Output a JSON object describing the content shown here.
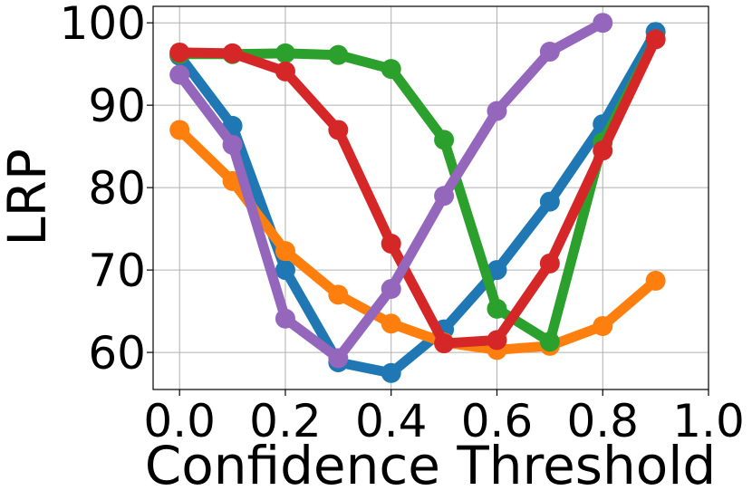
{
  "chart_data": {
    "type": "line",
    "title": "",
    "xlabel": "Confidence Threshold",
    "ylabel": "LRP",
    "xlim": [
      -0.05,
      1.0
    ],
    "ylim": [
      55.5,
      102
    ],
    "xticks": [
      0.0,
      0.2,
      0.4,
      0.6,
      0.8,
      1.0
    ],
    "xtick_labels": [
      "0.0",
      "0.2",
      "0.4",
      "0.6",
      "0.8",
      "1.0"
    ],
    "yticks": [
      60,
      70,
      80,
      90,
      100
    ],
    "ytick_labels": [
      "60",
      "70",
      "80",
      "90",
      "100"
    ],
    "grid": true,
    "legend": "none",
    "series": [
      {
        "color": "#1f77b4",
        "x": [
          0.0,
          0.1,
          0.2,
          0.3,
          0.4,
          0.5,
          0.6,
          0.7,
          0.8,
          0.9
        ],
        "y": [
          96.0,
          87.5,
          70.0,
          58.8,
          57.5,
          62.8,
          70.0,
          78.3,
          87.7,
          98.9
        ]
      },
      {
        "color": "#ff7f0e",
        "x": [
          0.0,
          0.1,
          0.2,
          0.3,
          0.4,
          0.5,
          0.6,
          0.7,
          0.8,
          0.9
        ],
        "y": [
          87.0,
          80.8,
          72.3,
          67.0,
          63.5,
          61.2,
          60.3,
          60.8,
          63.2,
          68.7
        ]
      },
      {
        "color": "#2ca02c",
        "x": [
          0.0,
          0.1,
          0.2,
          0.3,
          0.4,
          0.5,
          0.6,
          0.7,
          0.8,
          0.9
        ],
        "y": [
          96.2,
          96.2,
          96.3,
          96.1,
          94.4,
          85.8,
          65.3,
          61.3,
          85.5,
          98.0
        ]
      },
      {
        "color": "#d62728",
        "x": [
          0.0,
          0.1,
          0.2,
          0.3,
          0.4,
          0.5,
          0.6,
          0.7,
          0.8,
          0.9
        ],
        "y": [
          96.4,
          96.3,
          94.1,
          87.0,
          73.2,
          61.1,
          61.5,
          70.8,
          84.5,
          98.0
        ]
      },
      {
        "color": "#9467bd",
        "x": [
          0.0,
          0.1,
          0.2,
          0.3,
          0.4,
          0.5,
          0.6,
          0.7,
          0.8
        ],
        "y": [
          93.7,
          85.2,
          64.1,
          59.3,
          67.7,
          79.0,
          89.3,
          96.5,
          100.0
        ]
      }
    ]
  }
}
